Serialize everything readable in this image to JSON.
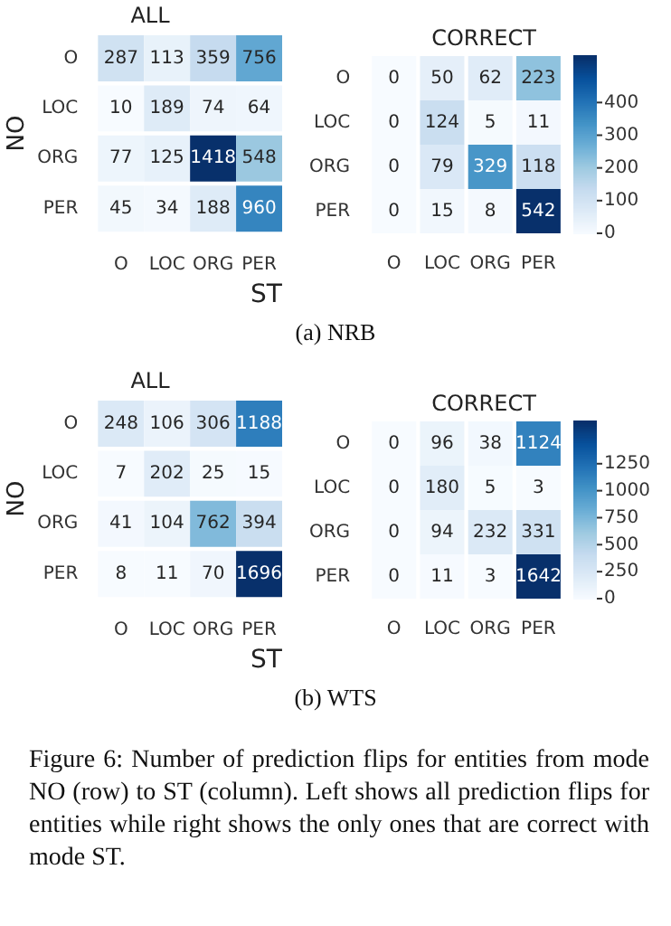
{
  "chart_data": [
    {
      "type": "heatmap",
      "title": "ALL",
      "xlabel": "ST",
      "ylabel": "NO",
      "categories": [
        "O",
        "LOC",
        "ORG",
        "PER"
      ],
      "y_categories": [
        "O",
        "LOC",
        "ORG",
        "PER"
      ],
      "cells": [
        [
          287,
          113,
          359,
          756
        ],
        [
          10,
          189,
          74,
          64
        ],
        [
          77,
          125,
          1418,
          548
        ],
        [
          45,
          34,
          188,
          960
        ]
      ],
      "data_labels": true
    },
    {
      "type": "heatmap",
      "title": "CORRECT",
      "categories": [
        "O",
        "LOC",
        "ORG",
        "PER"
      ],
      "y_categories": [
        "O",
        "LOC",
        "ORG",
        "PER"
      ],
      "cells": [
        [
          0,
          50,
          62,
          223
        ],
        [
          0,
          124,
          5,
          11
        ],
        [
          0,
          79,
          329,
          118
        ],
        [
          0,
          15,
          8,
          542
        ]
      ],
      "data_labels": true,
      "clim": [
        0,
        542
      ],
      "cticks": [
        0,
        100,
        200,
        300,
        400
      ],
      "annotations": [
        "(a) NRB"
      ]
    },
    {
      "type": "heatmap",
      "title": "ALL",
      "xlabel": "ST",
      "ylabel": "NO",
      "categories": [
        "O",
        "LOC",
        "ORG",
        "PER"
      ],
      "y_categories": [
        "O",
        "LOC",
        "ORG",
        "PER"
      ],
      "cells": [
        [
          248,
          106,
          306,
          1188
        ],
        [
          7,
          202,
          25,
          15
        ],
        [
          41,
          104,
          762,
          394
        ],
        [
          8,
          11,
          70,
          1696
        ]
      ],
      "data_labels": true
    },
    {
      "type": "heatmap",
      "title": "CORRECT",
      "categories": [
        "O",
        "LOC",
        "ORG",
        "PER"
      ],
      "y_categories": [
        "O",
        "LOC",
        "ORG",
        "PER"
      ],
      "cells": [
        [
          0,
          96,
          38,
          1124
        ],
        [
          0,
          180,
          5,
          3
        ],
        [
          0,
          94,
          232,
          331
        ],
        [
          0,
          11,
          3,
          1642
        ]
      ],
      "data_labels": true,
      "clim": [
        0,
        1642
      ],
      "cticks": [
        0,
        250,
        500,
        750,
        1000,
        1250
      ],
      "annotations": [
        "(b) WTS",
        "Figure 6: Number of prediction flips for entities from mode NO (row) to ST (column). Left shows all prediction flips for entities while right shows the only ones that are correct with mode ST."
      ]
    }
  ]
}
